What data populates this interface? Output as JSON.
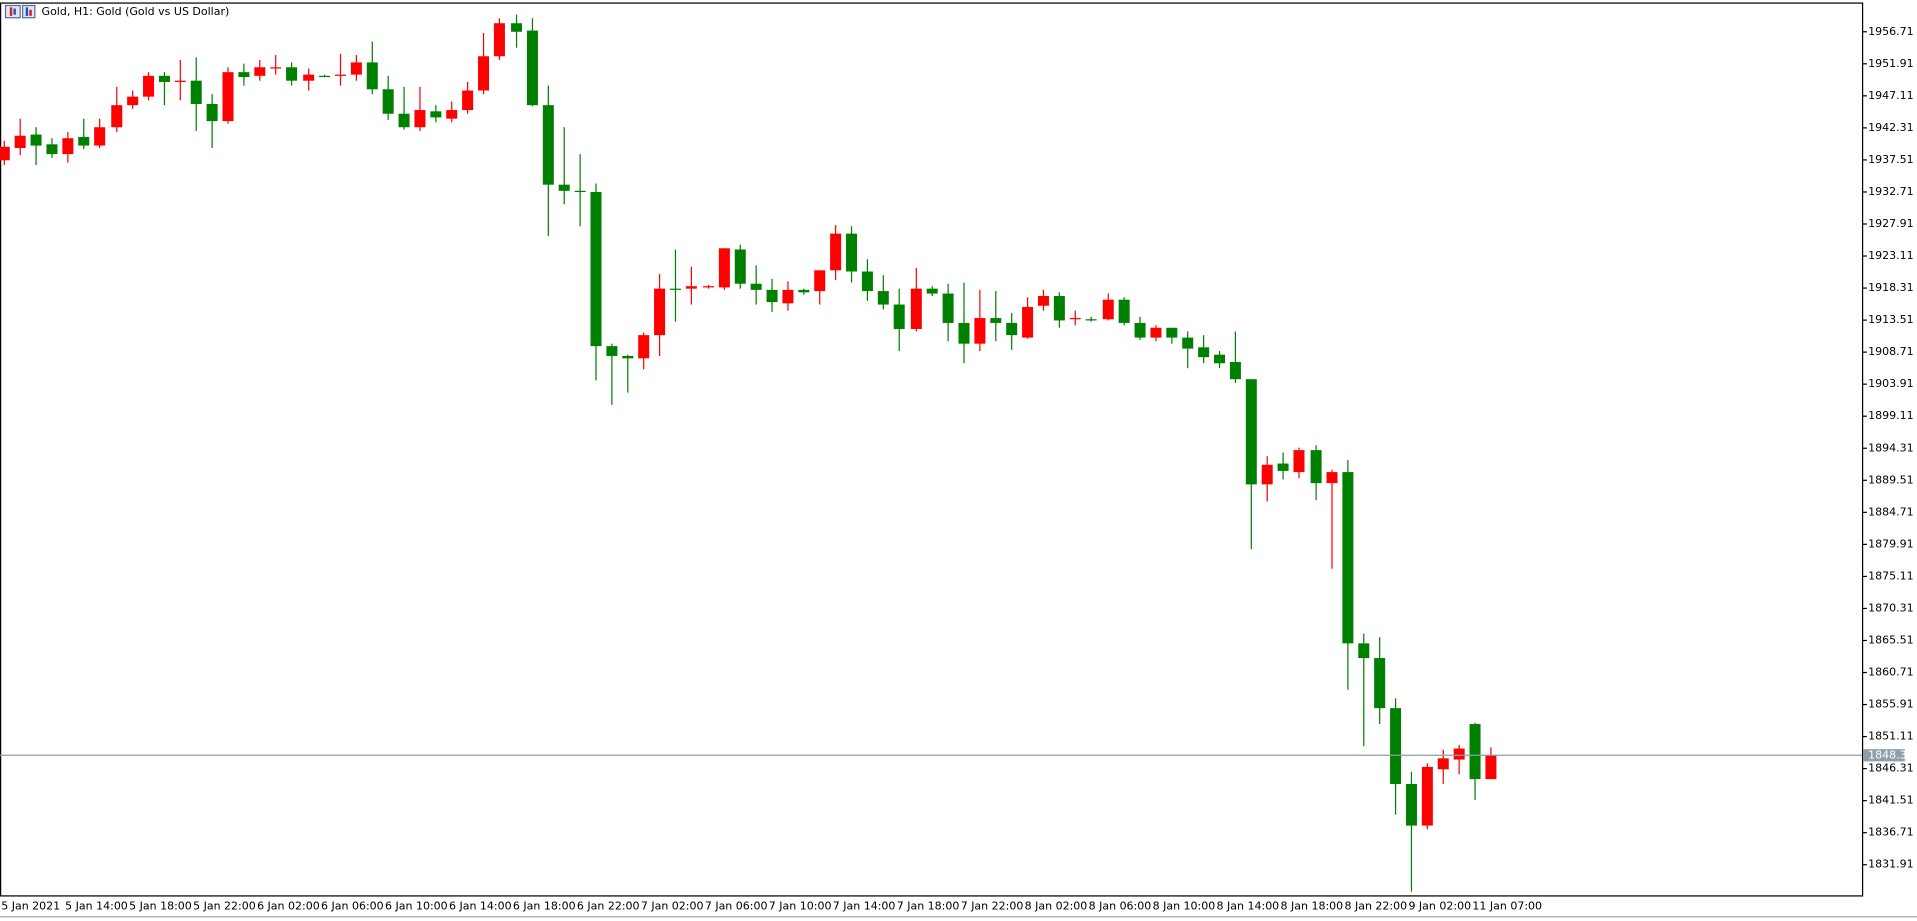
{
  "chart_data": {
    "type": "candlestick",
    "title": "Gold, H1:  Gold (Gold vs US Dollar)",
    "up_color": "#ff0000",
    "down_color": "#008000",
    "grid": false,
    "categories": [
      "5 Jan 2021",
      null,
      null,
      null,
      "5 Jan 14:00",
      null,
      null,
      null,
      "5 Jan 18:00",
      null,
      null,
      null,
      "5 Jan 22:00",
      null,
      null,
      null,
      "6 Jan 02:00",
      null,
      null,
      null,
      "6 Jan 06:00",
      null,
      null,
      null,
      "6 Jan 10:00",
      null,
      null,
      null,
      "6 Jan 14:00",
      null,
      null,
      null,
      "6 Jan 18:00",
      null,
      null,
      null,
      "6 Jan 22:00",
      null,
      null,
      null,
      "7 Jan 02:00",
      null,
      null,
      null,
      "7 Jan 06:00",
      null,
      null,
      null,
      "7 Jan 10:00",
      null,
      null,
      null,
      "7 Jan 14:00",
      null,
      null,
      null,
      "7 Jan 18:00",
      null,
      null,
      null,
      "7 Jan 22:00",
      null,
      null,
      null,
      "8 Jan 02:00",
      null,
      null,
      null,
      "8 Jan 06:00",
      null,
      null,
      null,
      "8 Jan 10:00",
      null,
      null,
      null,
      "8 Jan 14:00",
      null,
      null,
      null,
      "8 Jan 18:00",
      null,
      null,
      null,
      "8 Jan 22:00",
      null,
      null,
      null,
      "9 Jan 02:00",
      null,
      null,
      null,
      "11 Jan 07:00",
      null
    ],
    "open": [
      1937.46,
      1939.3,
      1941.31,
      1939.85,
      1938.38,
      1940.95,
      1939.66,
      1942.41,
      1945.71,
      1946.99,
      1950.11,
      1949.19,
      1949.38,
      1945.89,
      1943.33,
      1950.66,
      1950.11,
      1951.21,
      1951.39,
      1949.38,
      1950.11,
      1950.11,
      1950.29,
      1952.12,
      1948.09,
      1944.43,
      1942.41,
      1944.79,
      1943.69,
      1944.98,
      1947.91,
      1953.04,
      1957.99,
      1956.89,
      1945.71,
      1933.8,
      1932.88,
      1932.7,
      1909.61,
      1908.14,
      1907.78,
      1911.26,
      1918.22,
      1918.22,
      1918.41,
      1918.41,
      1924.09,
      1918.96,
      1918.04,
      1916.02,
      1918.04,
      1917.86,
      1920.97,
      1926.47,
      1920.79,
      1917.86,
      1915.84,
      1912.18,
      1918.22,
      1917.49,
      1913.09,
      1909.98,
      1913.82,
      1913.09,
      1910.89,
      1915.66,
      1917.12,
      1913.64,
      1913.64,
      1913.64,
      1916.57,
      1913.09,
      1910.89,
      1912.36,
      1910.89,
      1909.43,
      1908.33,
      1907.23,
      1904.66,
      1888.9,
      1892.02,
      1890.74,
      1894.03,
      1889.09,
      1890.74,
      1865.08,
      1862.88,
      1855.37,
      1844.01,
      1837.78,
      1846.21,
      1847.67,
      1852.99,
      1844.74
    ],
    "high": [
      1940.4,
      1943.69,
      1942.41,
      1940.76,
      1941.68,
      1943.69,
      1943.69,
      1948.46,
      1947.91,
      1950.66,
      1950.66,
      1952.49,
      1952.86,
      1947.36,
      1951.39,
      1951.94,
      1952.49,
      1953.22,
      1952.12,
      1951.21,
      1950.29,
      1953.41,
      1953.22,
      1955.24,
      1950.11,
      1948.46,
      1948.46,
      1945.71,
      1946.26,
      1949.19,
      1956.52,
      1958.72,
      1959.27,
      1958.72,
      1948.64,
      1942.41,
      1938.38,
      1933.98,
      1909.98,
      1908.33,
      1911.63,
      1920.42,
      1924.09,
      1921.52,
      1918.77,
      1924.27,
      1924.82,
      1921.7,
      1919.69,
      1919.32,
      1918.22,
      1920.97,
      1927.75,
      1927.57,
      1922.62,
      1920.24,
      1918.22,
      1921.34,
      1918.59,
      1918.96,
      1919.14,
      1918.04,
      1917.86,
      1914.56,
      1916.94,
      1918.04,
      1917.67,
      1914.92,
      1914.01,
      1917.49,
      1916.94,
      1914.01,
      1912.73,
      1912.36,
      1911.81,
      1911.26,
      1908.88,
      1911.81,
      1904.66,
      1893.12,
      1893.67,
      1894.4,
      1894.77,
      1891.1,
      1892.57,
      1866.55,
      1866.0,
      1856.83,
      1845.84,
      1847.12,
      1849.14,
      1849.87,
      1853.17,
      1849.5
    ],
    "low": [
      1936.73,
      1938.2,
      1936.73,
      1937.83,
      1937.1,
      1939.11,
      1939.3,
      1941.68,
      1945.16,
      1946.44,
      1945.71,
      1946.44,
      1941.86,
      1939.3,
      1942.96,
      1948.64,
      1949.38,
      1950.29,
      1948.64,
      1947.91,
      1949.93,
      1948.64,
      1949.38,
      1947.36,
      1943.51,
      1942.05,
      1941.86,
      1943.14,
      1943.14,
      1944.43,
      1947.36,
      1952.49,
      1954.32,
      1945.53,
      1926.1,
      1930.87,
      1927.57,
      1904.48,
      1900.81,
      1902.65,
      1906.13,
      1908.14,
      1913.28,
      1915.84,
      1918.22,
      1918.04,
      1918.22,
      1915.84,
      1914.74,
      1914.92,
      1917.31,
      1915.84,
      1919.51,
      1919.14,
      1916.39,
      1915.11,
      1908.88,
      1911.81,
      1917.12,
      1910.34,
      1907.04,
      1908.88,
      1910.34,
      1909.06,
      1910.71,
      1914.92,
      1912.36,
      1912.73,
      1913.28,
      1913.46,
      1912.73,
      1910.53,
      1910.34,
      1909.98,
      1906.31,
      1907.04,
      1906.31,
      1904.11,
      1879.19,
      1886.34,
      1889.64,
      1889.82,
      1886.52,
      1876.26,
      1858.12,
      1849.69,
      1852.99,
      1839.43,
      1827.88,
      1837.23,
      1844.01,
      1845.47,
      1841.62,
      1844.74
    ],
    "close": [
      1939.48,
      1941.13,
      1939.66,
      1938.38,
      1940.76,
      1939.66,
      1942.41,
      1945.71,
      1946.99,
      1950.11,
      1949.19,
      1949.38,
      1945.89,
      1943.33,
      1950.66,
      1949.93,
      1951.39,
      1951.39,
      1949.38,
      1950.29,
      1950.11,
      1950.29,
      1952.12,
      1948.09,
      1944.43,
      1942.41,
      1944.98,
      1943.88,
      1944.98,
      1947.91,
      1953.04,
      1957.99,
      1956.71,
      1945.71,
      1933.8,
      1932.88,
      1932.7,
      1909.61,
      1908.14,
      1907.78,
      1911.26,
      1918.22,
      1918.04,
      1918.59,
      1918.59,
      1924.27,
      1918.96,
      1918.04,
      1916.21,
      1918.04,
      1917.67,
      1920.97,
      1926.47,
      1920.79,
      1917.86,
      1915.84,
      1912.18,
      1918.22,
      1917.49,
      1913.09,
      1909.98,
      1913.82,
      1913.09,
      1911.26,
      1915.47,
      1917.12,
      1913.46,
      1913.82,
      1913.64,
      1916.57,
      1913.09,
      1910.89,
      1912.36,
      1910.89,
      1909.24,
      1907.96,
      1907.04,
      1904.66,
      1888.9,
      1891.83,
      1890.92,
      1894.03,
      1889.09,
      1890.74,
      1865.08,
      1862.88,
      1855.37,
      1844.01,
      1837.78,
      1846.57,
      1847.85,
      1849.32,
      1844.74,
      1848.31
    ],
    "current_price": 1848.31,
    "current_price_color": "#8e9eab",
    "ylim": [
      1827.33,
      1960.92
    ],
    "yticks": [
      1831.91,
      1836.71,
      1841.51,
      1846.31,
      1851.11,
      1855.91,
      1860.71,
      1865.51,
      1870.31,
      1875.11,
      1879.91,
      1884.71,
      1889.51,
      1894.31,
      1899.11,
      1903.91,
      1908.71,
      1913.51,
      1918.31,
      1923.11,
      1927.91,
      1932.71,
      1937.51,
      1942.31,
      1947.11,
      1951.91,
      1956.71
    ]
  }
}
